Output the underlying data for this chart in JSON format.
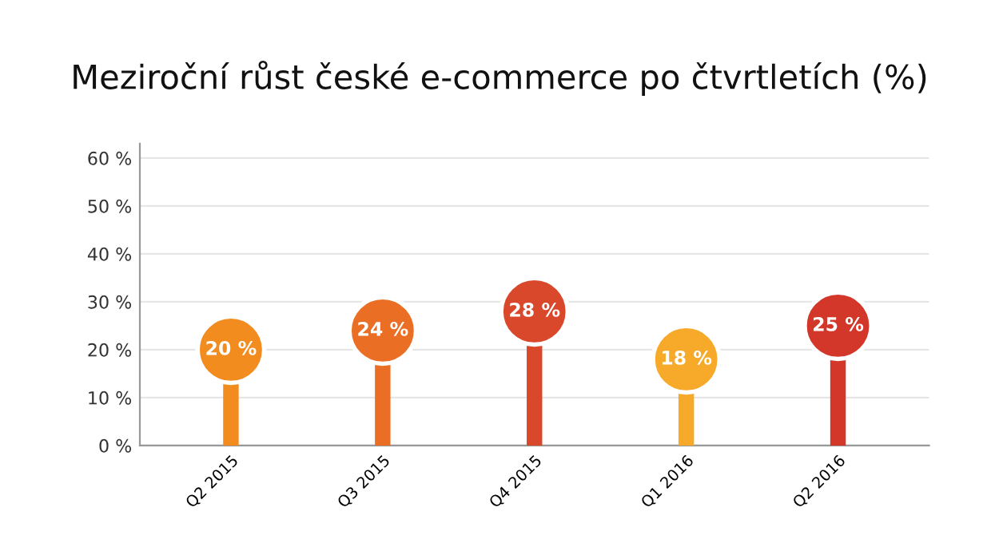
{
  "chart_data": {
    "type": "lollipop",
    "title": "Meziroční růst české e-commerce po čtvrtletích (%)",
    "categories": [
      "Q2 2015",
      "Q3 2015",
      "Q4 2015",
      "Q1 2016",
      "Q2 2016"
    ],
    "values": [
      20,
      24,
      28,
      18,
      25
    ],
    "colors": [
      "#f28c1e",
      "#ea6f24",
      "#d9482a",
      "#f7a92a",
      "#d2372a"
    ],
    "value_labels": [
      "20 %",
      "24 %",
      "28 %",
      "18 %",
      "25 %"
    ],
    "ylim": [
      0,
      63
    ],
    "yticks": [
      {
        "value": 0,
        "label": "0 %"
      },
      {
        "value": 10,
        "label": "10 %"
      },
      {
        "value": 20,
        "label": "20 %"
      },
      {
        "value": 30,
        "label": "30 %"
      },
      {
        "value": 40,
        "label": "40 %"
      },
      {
        "value": 50,
        "label": "50 %"
      },
      {
        "value": 60,
        "label": "60 %"
      }
    ],
    "grid": "y",
    "marker": "circle"
  }
}
